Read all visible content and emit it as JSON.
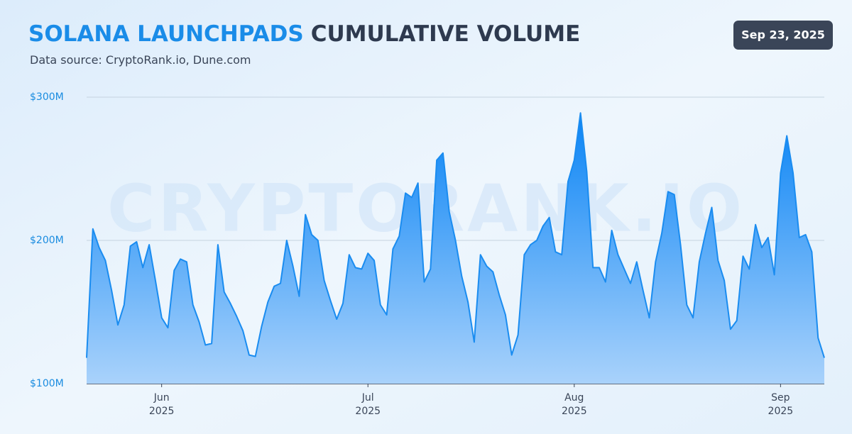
{
  "chart_data": {
    "type": "area",
    "title_highlight": "SOLANA LAUNCHPADS",
    "title": "CUMULATIVE VOLUME",
    "subtitle": "Data source: CryptoRank.io, Dune.com",
    "date_badge": "Sep 23, 2025",
    "watermark": "CRYPTORANK.IO",
    "color": "#1a8cf0",
    "categories": [
      null,
      null,
      null,
      null,
      null,
      null,
      null,
      null,
      null,
      null,
      null,
      null,
      "Jun 2025",
      null,
      null,
      null,
      null,
      null,
      null,
      null,
      null,
      null,
      null,
      null,
      null,
      null,
      null,
      null,
      null,
      null,
      null,
      null,
      null,
      null,
      null,
      null,
      null,
      null,
      null,
      null,
      null,
      null,
      null,
      null,
      null,
      "Jul 2025",
      null,
      null,
      null,
      null,
      null,
      null,
      null,
      null,
      null,
      null,
      null,
      null,
      null,
      null,
      null,
      null,
      null,
      null,
      null,
      null,
      null,
      null,
      null,
      null,
      null,
      null,
      null,
      null,
      null,
      null,
      null,
      null,
      "Aug 2025",
      null,
      null,
      null,
      null,
      null,
      null,
      null,
      null,
      null,
      null,
      null,
      null,
      null,
      null,
      null,
      null,
      null,
      null,
      null,
      null,
      null,
      null,
      null,
      null,
      null,
      null,
      null,
      null,
      null,
      null,
      null,
      null,
      "Sep 2025",
      null,
      null,
      null,
      null,
      null,
      null,
      null
    ],
    "values": [
      118,
      208,
      195,
      186,
      165,
      141,
      155,
      196,
      199,
      181,
      197,
      172,
      146,
      139,
      179,
      187,
      185,
      155,
      143,
      127,
      128,
      197,
      164,
      156,
      147,
      137,
      120,
      119,
      140,
      157,
      168,
      170,
      200,
      182,
      161,
      218,
      204,
      200,
      172,
      158,
      145,
      156,
      190,
      181,
      180,
      191,
      186,
      155,
      148,
      194,
      203,
      233,
      230,
      240,
      171,
      180,
      256,
      261,
      220,
      200,
      175,
      157,
      129,
      190,
      182,
      178,
      162,
      148,
      120,
      134,
      190,
      197,
      200,
      210,
      216,
      192,
      190,
      241,
      256,
      289,
      248,
      181,
      181,
      171,
      207,
      190,
      180,
      170,
      185,
      165,
      146,
      185,
      205,
      234,
      232,
      197,
      155,
      146,
      185,
      205,
      223,
      186,
      172,
      138,
      144,
      189,
      180,
      211,
      195,
      202,
      176,
      247,
      273,
      247,
      202,
      204,
      192,
      132,
      118
    ],
    "ylim": [
      100,
      300
    ],
    "yticks": [
      {
        "value": 100,
        "label": "$100M"
      },
      {
        "value": 200,
        "label": "$200M"
      },
      {
        "value": 300,
        "label": "$300M"
      }
    ],
    "grid": true
  }
}
